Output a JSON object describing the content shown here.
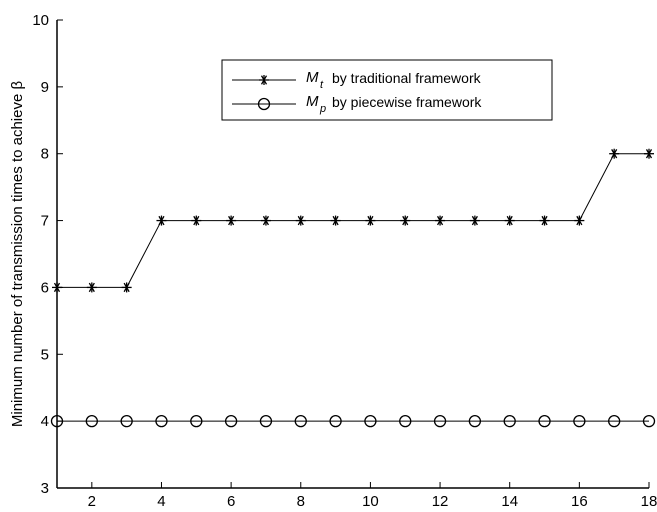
{
  "chart_data": {
    "type": "line",
    "xlabel": "",
    "ylabel": "Minimum number of transmission times to achieve β",
    "xlim": [
      1,
      18
    ],
    "ylim": [
      3,
      10
    ],
    "xticks": [
      2,
      4,
      6,
      8,
      10,
      12,
      14,
      16,
      18
    ],
    "yticks": [
      3,
      4,
      5,
      6,
      7,
      8,
      9,
      10
    ],
    "grid": false,
    "legend_position": "top-right",
    "x": [
      1,
      2,
      3,
      4,
      5,
      6,
      7,
      8,
      9,
      10,
      11,
      12,
      13,
      14,
      15,
      16,
      17,
      18
    ],
    "series": [
      {
        "symbol": "M",
        "subscript": "t",
        "label": "by traditional framework",
        "marker": "asterisk",
        "values": [
          6,
          6,
          6,
          7,
          7,
          7,
          7,
          7,
          7,
          7,
          7,
          7,
          7,
          7,
          7,
          7,
          8,
          8
        ]
      },
      {
        "symbol": "M",
        "subscript": "p",
        "label": "by piecewise framework",
        "marker": "circle",
        "values": [
          4,
          4,
          4,
          4,
          4,
          4,
          4,
          4,
          4,
          4,
          4,
          4,
          4,
          4,
          4,
          4,
          4,
          4
        ]
      }
    ],
    "colors": {
      "line": "#000000",
      "marker": "#000000"
    }
  }
}
